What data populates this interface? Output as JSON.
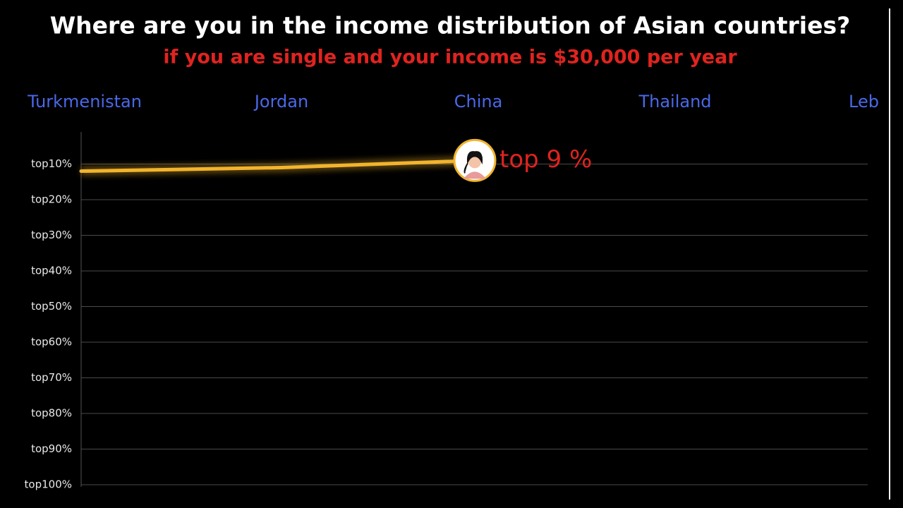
{
  "chart_data": {
    "type": "line",
    "title": "Where are you in the income distribution of Asian countries?",
    "subtitle": "if you are single and your income is $30,000 per year",
    "categories": [
      "Turkmenistan",
      "Jordan",
      "China",
      "Thailand",
      "Lebar"
    ],
    "values": [
      12,
      11,
      9,
      null,
      null
    ],
    "value_labels": [
      null,
      null,
      "top 9 %",
      null,
      null
    ],
    "color": "#f2b42c",
    "ylim": [
      1,
      100
    ],
    "inverted": true,
    "yticks": [
      {
        "value": 10,
        "label": "top10%"
      },
      {
        "value": 20,
        "label": "top20%"
      },
      {
        "value": 30,
        "label": "top30%"
      },
      {
        "value": 40,
        "label": "top40%"
      },
      {
        "value": 50,
        "label": "top50%"
      },
      {
        "value": 60,
        "label": "top60%"
      },
      {
        "value": 70,
        "label": "top70%"
      },
      {
        "value": 80,
        "label": "top80%"
      },
      {
        "value": 90,
        "label": "top90%"
      },
      {
        "value": 100,
        "label": "top100%"
      }
    ],
    "grid": true
  }
}
